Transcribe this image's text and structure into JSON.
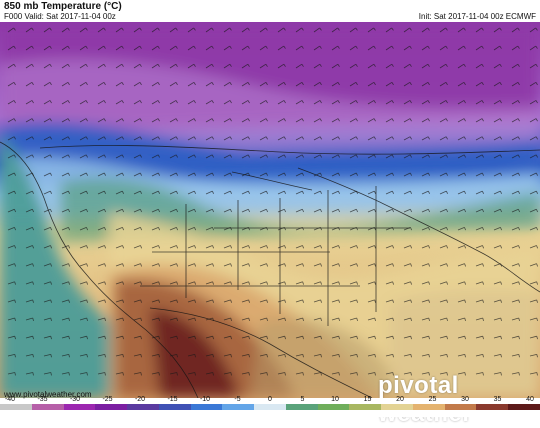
{
  "header": {
    "title": "850 mb Temperature (°C)",
    "valid": "F000 Valid: Sat 2017-11-04 00z",
    "init": "Init: Sat 2017-11-04 00z ECMWF"
  },
  "footer": {
    "website": "www.pivotalweather.com",
    "logo": "pivotal weather"
  },
  "colorbar": {
    "ticks": [
      "-40",
      "-35",
      "-30",
      "-25",
      "-20",
      "-15",
      "-10",
      "-5",
      "0",
      "5",
      "10",
      "15",
      "20",
      "25",
      "30",
      "35",
      "40"
    ],
    "colors": [
      "#c8c8c8",
      "#b65fa8",
      "#9c27b0",
      "#7b1fa2",
      "#5a3aa0",
      "#3f51b5",
      "#3a78d6",
      "#63a5e8",
      "#d9e8f2",
      "#5aa37b",
      "#6fae5b",
      "#a8b761",
      "#e3d394",
      "#e4b36f",
      "#c27a4a",
      "#8a3a2e",
      "#5d1a1a"
    ]
  },
  "map": {
    "palette": {
      "ocean": "#4c9c98",
      "purple_core": "#8e39a8",
      "purple_edge": "#b98bd6",
      "blue_band": "#2f5fc4",
      "light_blue": "#97c3ea",
      "green": "#4f9a78",
      "yellow": "#e9d395",
      "tan": "#d8a36a",
      "brown": "#a35f3c",
      "dark_red": "#6a1f1f",
      "gulf": "#b79a6a",
      "atlantic": "#d9c18e"
    }
  }
}
